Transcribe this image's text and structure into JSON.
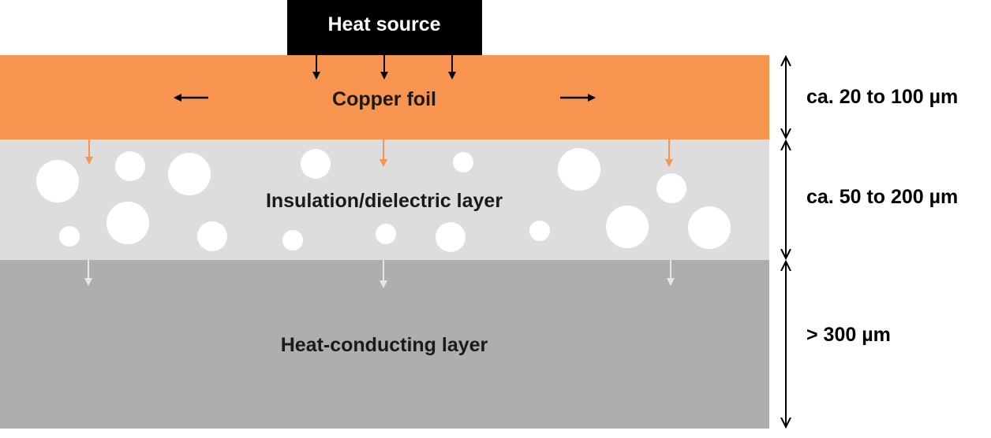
{
  "heat_source": {
    "label": "Heat source"
  },
  "layers": {
    "copper": {
      "label": "Copper foil",
      "thickness": "ca. 20 to 100 µm"
    },
    "insulation": {
      "label": "Insulation/dielectric layer",
      "thickness": "ca. 50 to 200 µm"
    },
    "conducting": {
      "label": "Heat-conducting layer",
      "thickness": "> 300 µm"
    }
  },
  "colors": {
    "copper": "#F79550",
    "insulation": "#DDDDDE",
    "conducting": "#AEAEAE",
    "heat_source": "#000000",
    "filler_particles": "#FFFFFF",
    "copper_arrows": "#F79550",
    "insulation_arrows": "#E6E6E6"
  }
}
